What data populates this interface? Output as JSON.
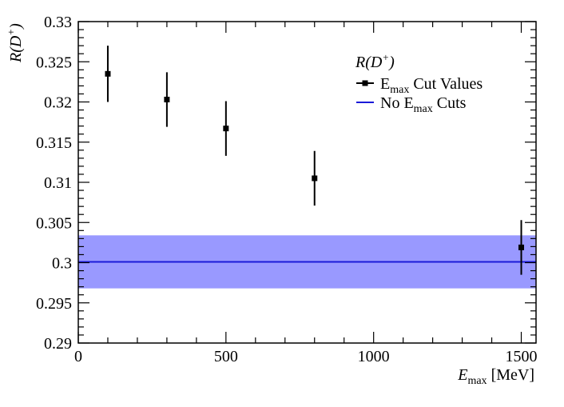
{
  "chart_data": {
    "type": "scatter",
    "xlabel": {
      "main": "E",
      "sub": "max",
      "unit": " [MeV]"
    },
    "ylabel": {
      "main": "R(D",
      "sup": "+",
      "close": ")"
    },
    "xlim": [
      0,
      1550
    ],
    "ylim": [
      0.29,
      0.33
    ],
    "x_ticks": [
      0,
      500,
      1000,
      1500
    ],
    "x_tick_labels": [
      "0",
      "500",
      "1000",
      "1500"
    ],
    "y_ticks": [
      0.29,
      0.295,
      0.3,
      0.305,
      0.31,
      0.315,
      0.32,
      0.325,
      0.33
    ],
    "y_tick_labels": [
      "0.29",
      "0.295",
      "0.3",
      "0.305",
      "0.31",
      "0.315",
      "0.32",
      "0.325",
      "0.33"
    ],
    "x_minor_step": 100,
    "y_minor_step": 0.001,
    "grid": false,
    "legend": {
      "placement": "top-right",
      "title": {
        "main": "R(D",
        "sup": "+",
        "close": ")"
      },
      "entries": [
        {
          "pre": "E",
          "sub": "max",
          "post": " Cut Values",
          "kind": "marker"
        },
        {
          "pre": "No E",
          "sub": "max",
          "post": " Cuts",
          "kind": "line"
        }
      ]
    },
    "series": [
      {
        "x": [
          100,
          300,
          500,
          800,
          1500
        ],
        "y": [
          0.3235,
          0.3203,
          0.3167,
          0.3105,
          0.3019
        ],
        "yerr": [
          0.0035,
          0.0034,
          0.0034,
          0.0034,
          0.0034
        ],
        "color": "#000000"
      }
    ],
    "reference": {
      "value": 0.3001,
      "band": [
        0.2968,
        0.3034
      ],
      "line_color": "#1a1ad8",
      "band_color": "#9999ff"
    }
  }
}
